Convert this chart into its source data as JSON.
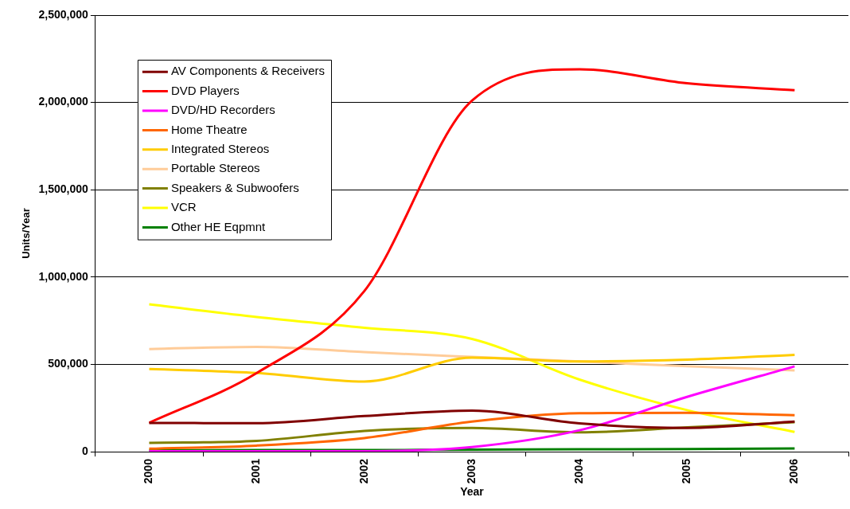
{
  "chart_data": {
    "type": "line",
    "xlabel": "Year",
    "ylabel": "Units/Year",
    "categories": [
      "2000",
      "2001",
      "2002",
      "2003",
      "2004",
      "2005",
      "2006"
    ],
    "series": [
      {
        "name": "AV Components & Receivers",
        "color": "#800000",
        "values": [
          165000,
          163000,
          204000,
          235000,
          162000,
          136000,
          172000
        ]
      },
      {
        "name": "DVD Players",
        "color": "#ff0000",
        "values": [
          165000,
          451000,
          920000,
          2010000,
          2190000,
          2110000,
          2070000
        ]
      },
      {
        "name": "DVD/HD Recorders",
        "color": "#ff00ff",
        "values": [
          2000,
          2000,
          3000,
          27000,
          123000,
          314000,
          489000
        ]
      },
      {
        "name": "Home Theatre",
        "color": "#ff6600",
        "values": [
          17000,
          35000,
          78000,
          172000,
          220000,
          223000,
          209000
        ]
      },
      {
        "name": "Integrated Stereos",
        "color": "#ffcc00",
        "values": [
          473000,
          451000,
          402000,
          538000,
          517000,
          527000,
          555000
        ]
      },
      {
        "name": "Portable Stereos",
        "color": "#ffcc99",
        "values": [
          588000,
          600000,
          570000,
          543000,
          517000,
          489000,
          466000
        ]
      },
      {
        "name": "Speakers & Subwoofers",
        "color": "#808000",
        "values": [
          50000,
          62000,
          119000,
          136000,
          111000,
          139000,
          169000
        ]
      },
      {
        "name": "VCR",
        "color": "#ffff00",
        "values": [
          844000,
          771000,
          710000,
          646000,
          413000,
          238000,
          113000
        ]
      },
      {
        "name": "Other HE Eqpmnt",
        "color": "#008000",
        "values": [
          8000,
          9000,
          9000,
          12000,
          14000,
          15000,
          18000
        ]
      }
    ],
    "ylim": [
      0,
      2500000
    ],
    "yticks": [
      {
        "value": 0,
        "label": "0"
      },
      {
        "value": 500000,
        "label": "500,000"
      },
      {
        "value": 1000000,
        "label": "1,000,000"
      },
      {
        "value": 1500000,
        "label": "1,500,000"
      },
      {
        "value": 2000000,
        "label": "2,000,000"
      },
      {
        "value": 2500000,
        "label": "2,500,000"
      }
    ],
    "grid": "y",
    "legend": "top left",
    "marker": "none",
    "line_style": "solid"
  }
}
